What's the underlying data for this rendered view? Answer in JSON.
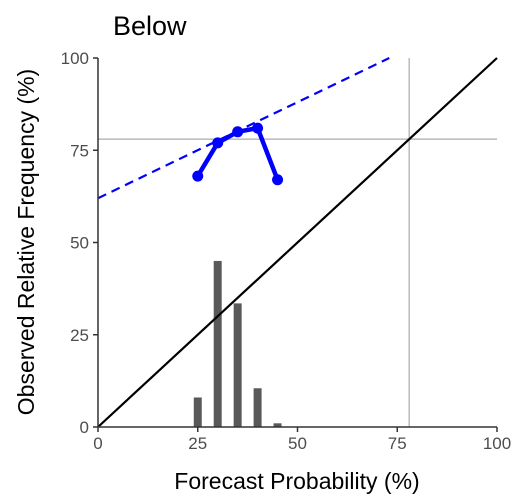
{
  "chart_data": {
    "type": "line",
    "title": "Below",
    "xlabel": "Forecast Probability (%)",
    "ylabel": "Observed Relative Frequency (%)",
    "xlim": [
      0,
      100
    ],
    "ylim": [
      0,
      100
    ],
    "x_ticks": [
      "0",
      "25",
      "50",
      "75",
      "100"
    ],
    "y_ticks": [
      "0",
      "25",
      "50",
      "75",
      "100"
    ],
    "grid": false,
    "reliability_curve": {
      "x": [
        25,
        30,
        35,
        40,
        45
      ],
      "y": [
        68,
        77,
        80,
        81,
        67
      ],
      "color": "#0000ff"
    },
    "fit_line": {
      "x": [
        0,
        73
      ],
      "y": [
        62,
        100
      ],
      "color": "#0000ff",
      "style": "dashed"
    },
    "diagonal": {
      "x": [
        0,
        100
      ],
      "y": [
        0,
        100
      ],
      "color": "#000000"
    },
    "climatology": {
      "x": 78,
      "y": 78,
      "color": "#bebebe"
    },
    "histogram": {
      "x": [
        25,
        30,
        35,
        40,
        45
      ],
      "values": [
        8,
        45,
        33.5,
        10.5,
        1
      ],
      "bar_width": 2,
      "color": "#595959"
    }
  }
}
